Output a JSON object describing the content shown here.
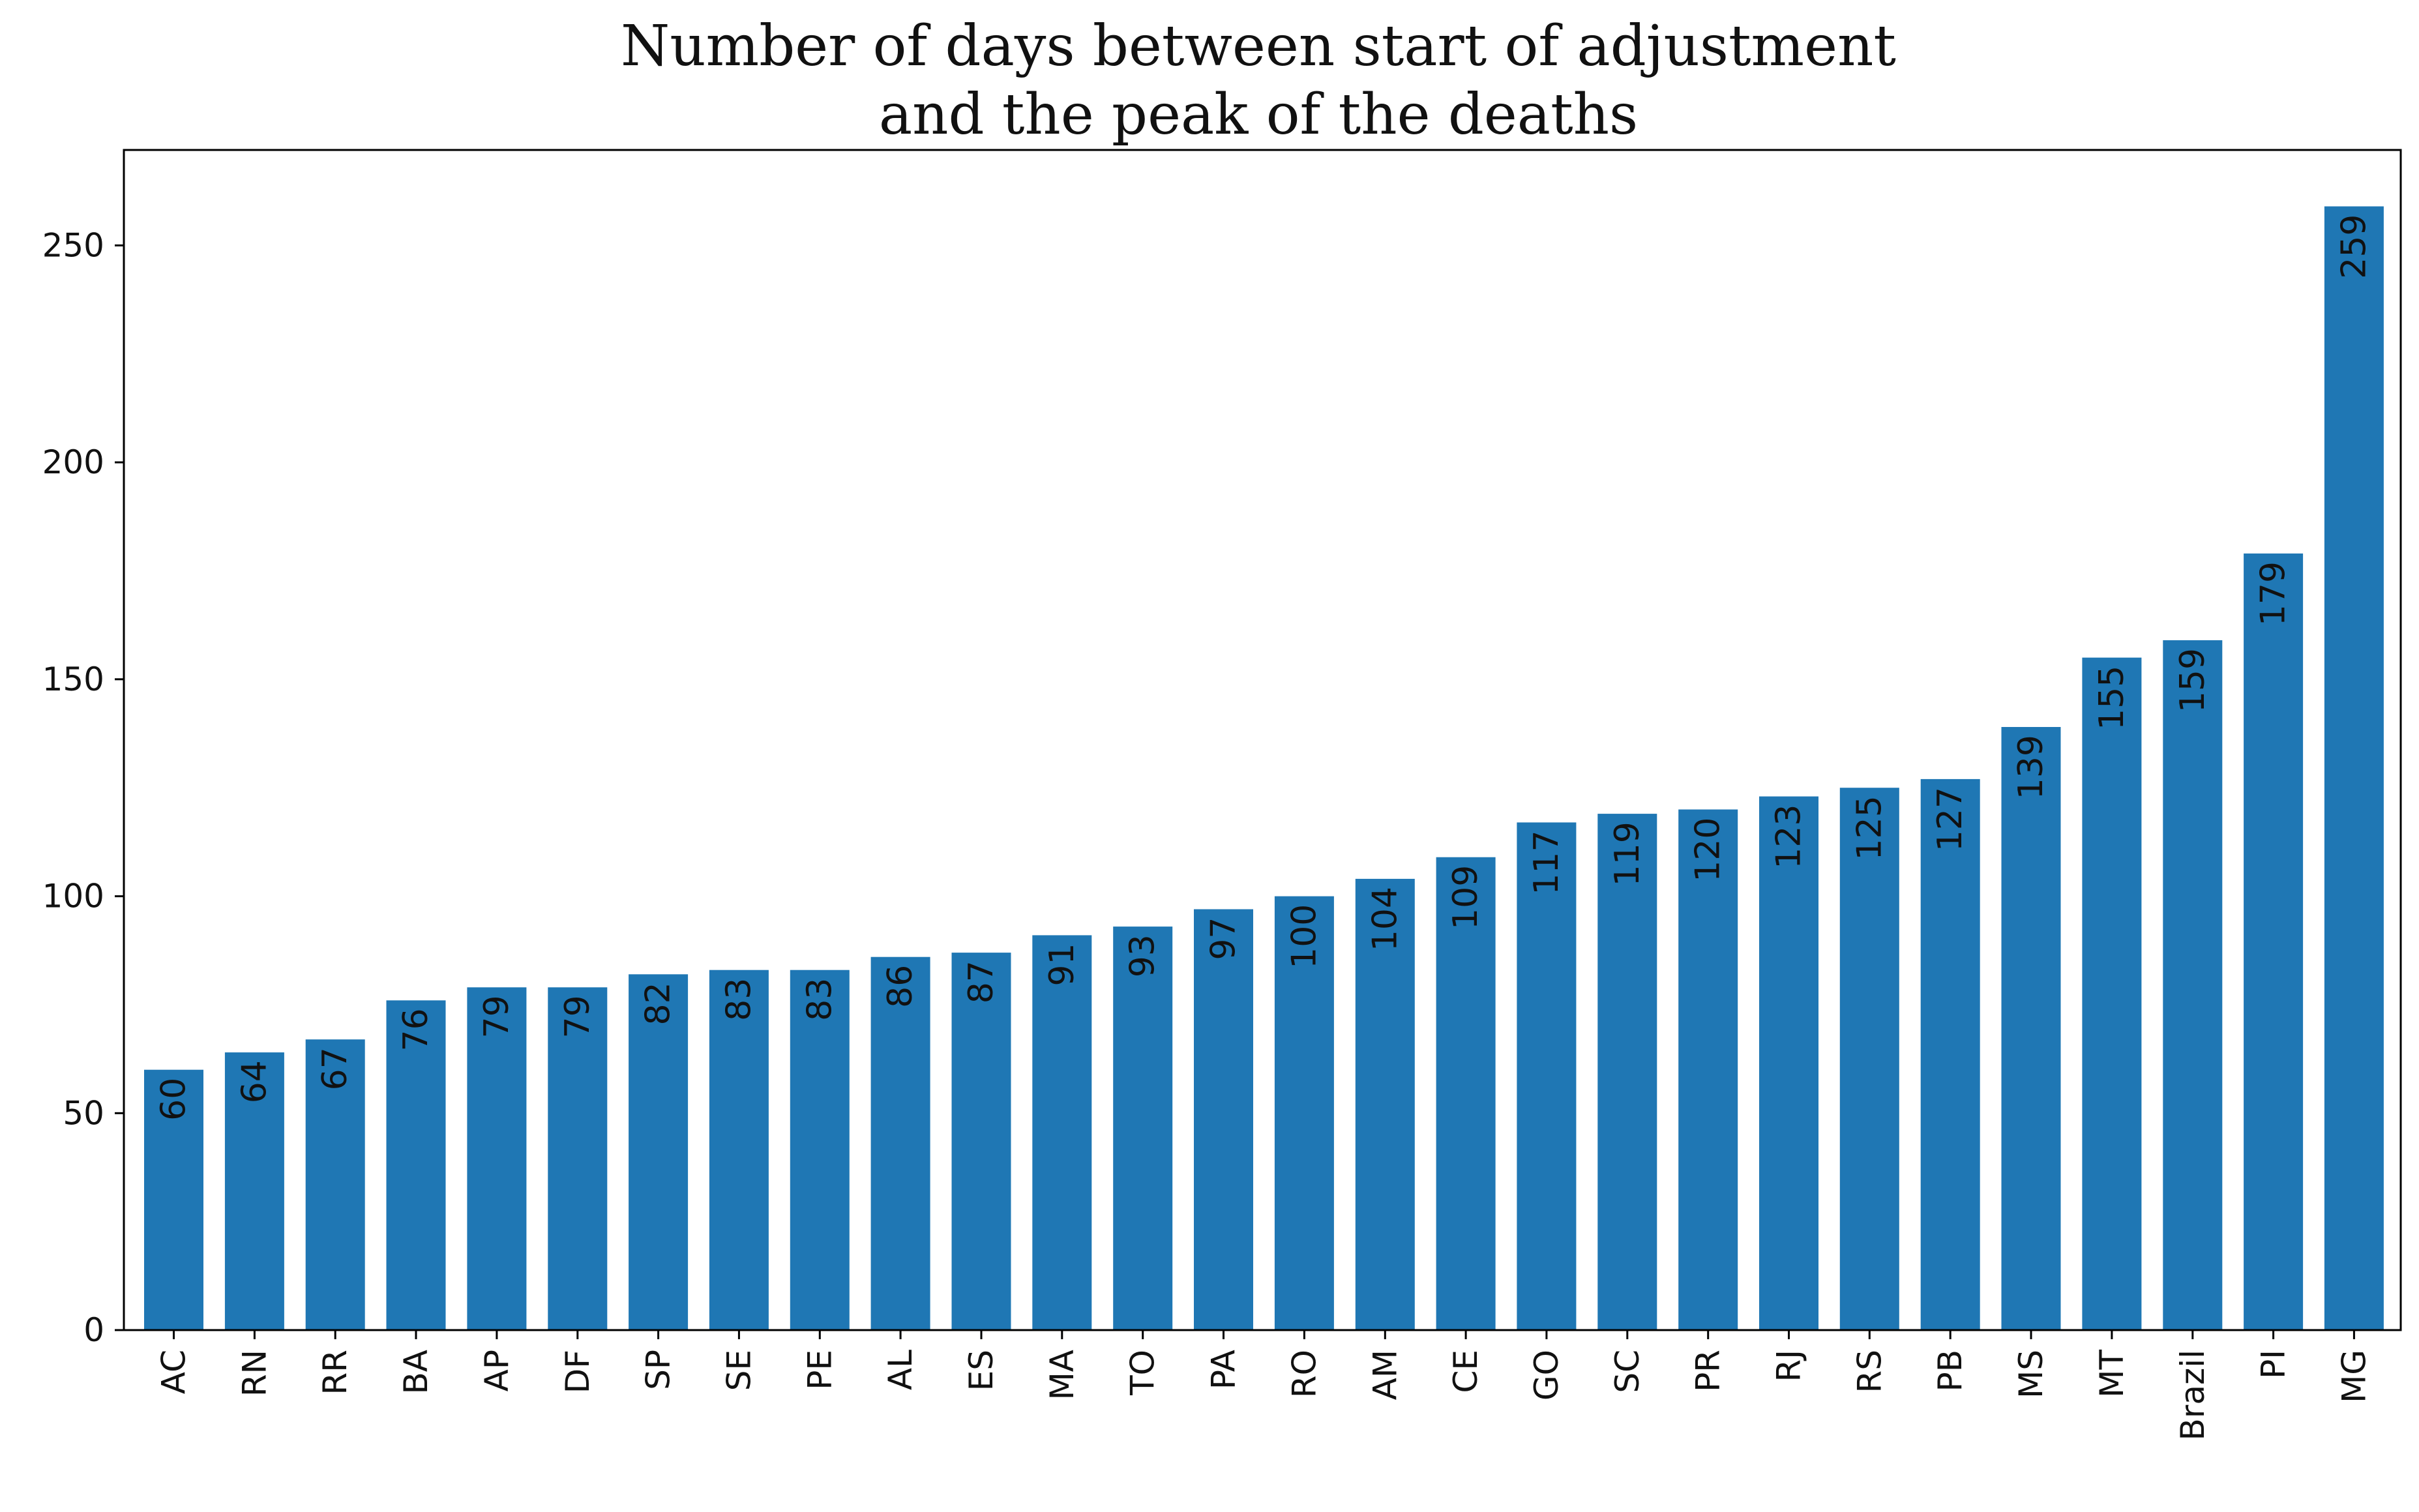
{
  "chart_data": {
    "type": "bar",
    "title": "Number of days between start of adjustment and the peak of the deaths",
    "title_lines": [
      "Number of days between start of adjustment",
      "and the peak of the deaths"
    ],
    "xlabel": "",
    "ylabel": "",
    "ylim": [
      0,
      272
    ],
    "yticks": [
      0,
      50,
      100,
      150,
      200,
      250
    ],
    "bar_color": "#1f77b4",
    "grid": false,
    "categories": [
      "AC",
      "RN",
      "RR",
      "BA",
      "AP",
      "DF",
      "SP",
      "SE",
      "PE",
      "AL",
      "ES",
      "MA",
      "TO",
      "PA",
      "RO",
      "AM",
      "CE",
      "GO",
      "SC",
      "PR",
      "RJ",
      "RS",
      "PB",
      "MS",
      "MT",
      "Brazil",
      "PI",
      "MG"
    ],
    "values": [
      60,
      64,
      67,
      76,
      79,
      79,
      82,
      83,
      83,
      86,
      87,
      91,
      93,
      97,
      100,
      104,
      109,
      117,
      119,
      120,
      123,
      125,
      127,
      139,
      155,
      159,
      179,
      259
    ]
  }
}
